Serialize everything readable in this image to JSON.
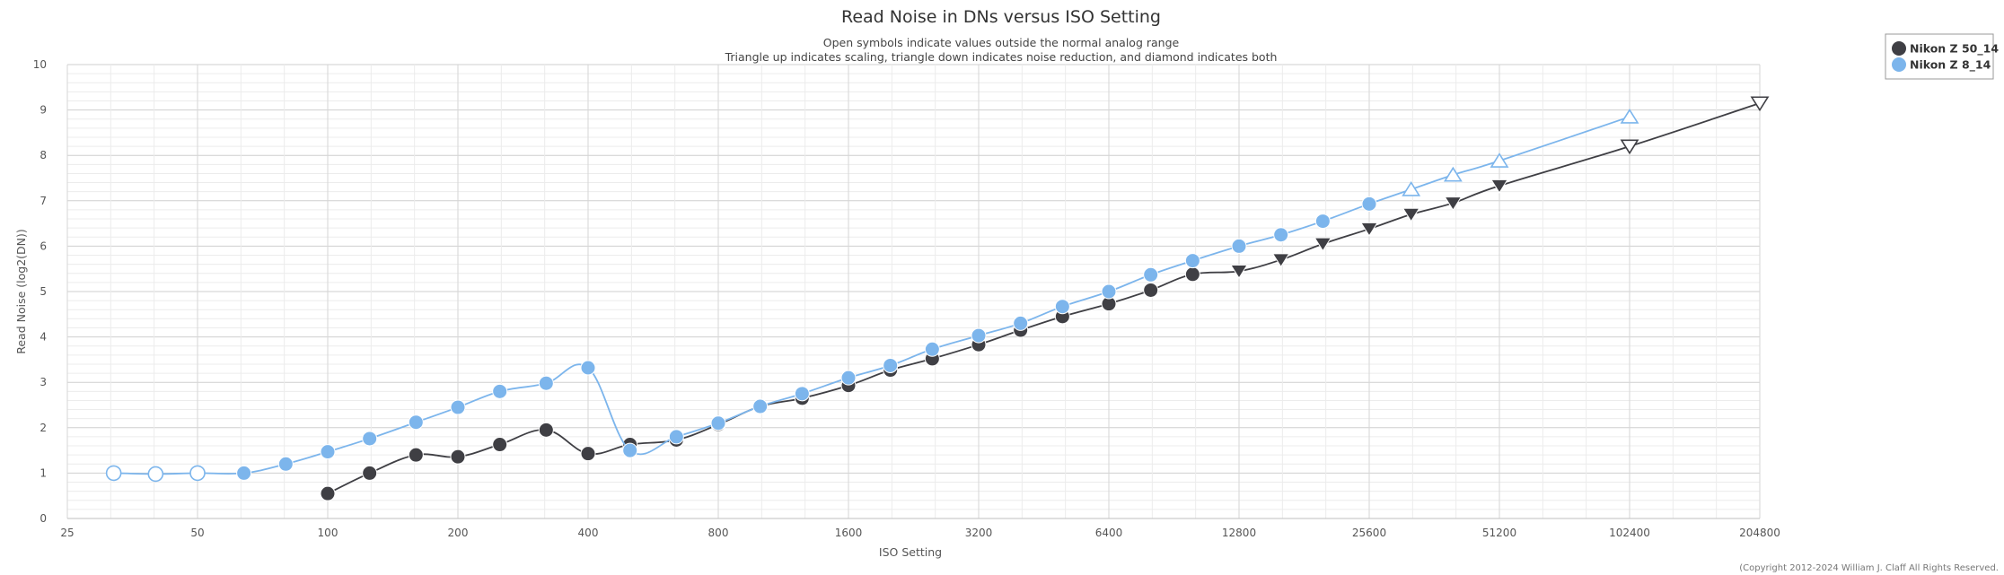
{
  "chart_data": {
    "type": "line",
    "title": "Read Noise in DNs versus ISO Setting",
    "subtitle": [
      "Open symbols indicate values outside the normal analog range",
      "Triangle up indicates scaling, triangle down indicates noise reduction, and diamond indicates both"
    ],
    "xlabel": "ISO Setting",
    "ylabel": "Read Noise (log2(DN))",
    "x_scale": "log2",
    "xlim": [
      25,
      204800
    ],
    "ylim": [
      0,
      10
    ],
    "x_ticks": [
      "25",
      "50",
      "100",
      "200",
      "400",
      "800",
      "1600",
      "3200",
      "6400",
      "12800",
      "25600",
      "51200",
      "102400",
      "204800"
    ],
    "y_ticks": [
      "0",
      "1",
      "2",
      "3",
      "4",
      "5",
      "6",
      "7",
      "8",
      "9",
      "10"
    ],
    "grid": true,
    "legend": "top-right",
    "copyright": "(Copyright 2012-2024 William J. Claff All Rights Reserved.",
    "series": [
      {
        "name": "Nikon Z 50_14",
        "color": "#3f3f44",
        "points": [
          {
            "x": 100,
            "y": 0.55,
            "marker": "circle"
          },
          {
            "x": 125,
            "y": 1.0,
            "marker": "circle"
          },
          {
            "x": 160,
            "y": 1.4,
            "marker": "circle"
          },
          {
            "x": 200,
            "y": 1.36,
            "marker": "circle"
          },
          {
            "x": 250,
            "y": 1.63,
            "marker": "circle"
          },
          {
            "x": 320,
            "y": 1.95,
            "marker": "circle"
          },
          {
            "x": 400,
            "y": 1.43,
            "marker": "circle"
          },
          {
            "x": 500,
            "y": 1.63,
            "marker": "circle"
          },
          {
            "x": 640,
            "y": 1.73,
            "marker": "circle"
          },
          {
            "x": 800,
            "y": 2.07,
            "marker": "circle"
          },
          {
            "x": 1000,
            "y": 2.47,
            "marker": "circle"
          },
          {
            "x": 1250,
            "y": 2.65,
            "marker": "circle"
          },
          {
            "x": 1600,
            "y": 2.93,
            "marker": "circle"
          },
          {
            "x": 2000,
            "y": 3.27,
            "marker": "circle"
          },
          {
            "x": 2500,
            "y": 3.52,
            "marker": "circle"
          },
          {
            "x": 3200,
            "y": 3.83,
            "marker": "circle"
          },
          {
            "x": 4000,
            "y": 4.15,
            "marker": "circle"
          },
          {
            "x": 5000,
            "y": 4.45,
            "marker": "circle"
          },
          {
            "x": 6400,
            "y": 4.73,
            "marker": "circle"
          },
          {
            "x": 8000,
            "y": 5.03,
            "marker": "circle"
          },
          {
            "x": 10000,
            "y": 5.38,
            "marker": "circle"
          },
          {
            "x": 12800,
            "y": 5.45,
            "marker": "triangle-down"
          },
          {
            "x": 16000,
            "y": 5.7,
            "marker": "triangle-down"
          },
          {
            "x": 20000,
            "y": 6.05,
            "marker": "triangle-down"
          },
          {
            "x": 25600,
            "y": 6.38,
            "marker": "triangle-down"
          },
          {
            "x": 32000,
            "y": 6.7,
            "marker": "triangle-down"
          },
          {
            "x": 40000,
            "y": 6.95,
            "marker": "triangle-down"
          },
          {
            "x": 51200,
            "y": 7.33,
            "marker": "triangle-down"
          },
          {
            "x": 102400,
            "y": 8.2,
            "marker": "triangle-down-open"
          },
          {
            "x": 204800,
            "y": 9.15,
            "marker": "triangle-down-open"
          }
        ]
      },
      {
        "name": "Nikon Z 8_14",
        "color": "#7cb5ec",
        "points": [
          {
            "x": 32,
            "y": 1.0,
            "marker": "circle-open"
          },
          {
            "x": 40,
            "y": 0.98,
            "marker": "circle-open"
          },
          {
            "x": 50,
            "y": 1.0,
            "marker": "circle-open"
          },
          {
            "x": 64,
            "y": 1.0,
            "marker": "circle"
          },
          {
            "x": 80,
            "y": 1.2,
            "marker": "circle"
          },
          {
            "x": 100,
            "y": 1.47,
            "marker": "circle"
          },
          {
            "x": 125,
            "y": 1.76,
            "marker": "circle"
          },
          {
            "x": 160,
            "y": 2.12,
            "marker": "circle"
          },
          {
            "x": 200,
            "y": 2.45,
            "marker": "circle"
          },
          {
            "x": 250,
            "y": 2.8,
            "marker": "circle"
          },
          {
            "x": 320,
            "y": 2.98,
            "marker": "circle"
          },
          {
            "x": 400,
            "y": 3.32,
            "marker": "circle"
          },
          {
            "x": 500,
            "y": 1.5,
            "marker": "circle"
          },
          {
            "x": 640,
            "y": 1.8,
            "marker": "circle"
          },
          {
            "x": 800,
            "y": 2.1,
            "marker": "circle"
          },
          {
            "x": 1000,
            "y": 2.47,
            "marker": "circle"
          },
          {
            "x": 1250,
            "y": 2.75,
            "marker": "circle"
          },
          {
            "x": 1600,
            "y": 3.1,
            "marker": "circle"
          },
          {
            "x": 2000,
            "y": 3.37,
            "marker": "circle"
          },
          {
            "x": 2500,
            "y": 3.73,
            "marker": "circle"
          },
          {
            "x": 3200,
            "y": 4.03,
            "marker": "circle"
          },
          {
            "x": 4000,
            "y": 4.3,
            "marker": "circle"
          },
          {
            "x": 5000,
            "y": 4.67,
            "marker": "circle"
          },
          {
            "x": 6400,
            "y": 5.0,
            "marker": "circle"
          },
          {
            "x": 8000,
            "y": 5.37,
            "marker": "circle"
          },
          {
            "x": 10000,
            "y": 5.68,
            "marker": "circle"
          },
          {
            "x": 12800,
            "y": 6.0,
            "marker": "circle"
          },
          {
            "x": 16000,
            "y": 6.25,
            "marker": "circle"
          },
          {
            "x": 20000,
            "y": 6.55,
            "marker": "circle"
          },
          {
            "x": 25600,
            "y": 6.93,
            "marker": "circle"
          },
          {
            "x": 32000,
            "y": 7.25,
            "marker": "triangle-up-open"
          },
          {
            "x": 40000,
            "y": 7.57,
            "marker": "triangle-up-open"
          },
          {
            "x": 51200,
            "y": 7.88,
            "marker": "triangle-up-open"
          },
          {
            "x": 102400,
            "y": 8.85,
            "marker": "triangle-up-open"
          }
        ]
      }
    ]
  }
}
